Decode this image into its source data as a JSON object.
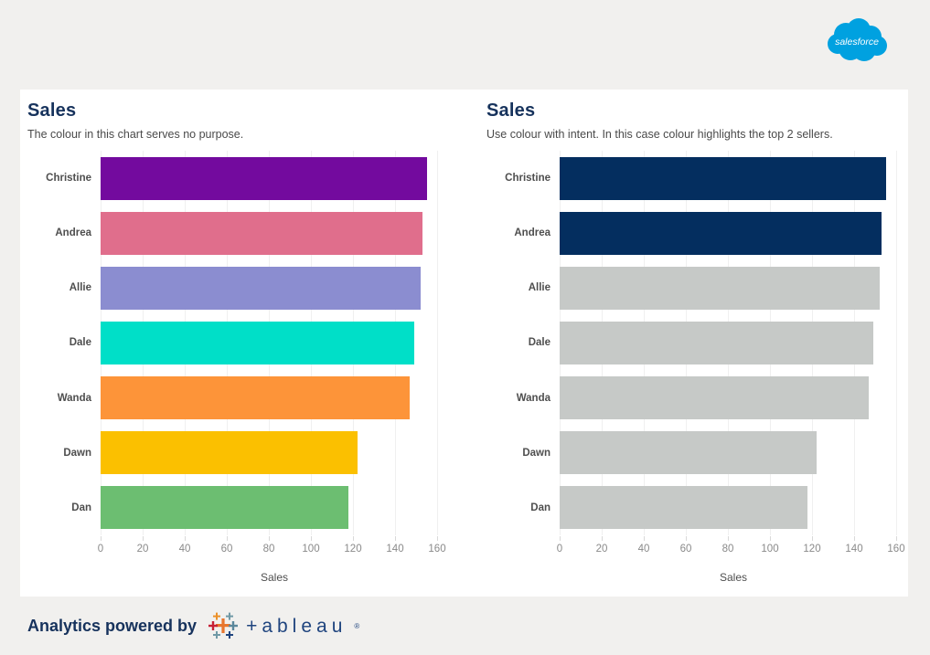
{
  "page": {
    "background": "#F1F0EE",
    "card_background": "#FFFFFF"
  },
  "header": {
    "salesforce_logo_text": "salesforce",
    "salesforce_blue": "#00A1E0"
  },
  "chart_data": [
    {
      "type": "bar",
      "orientation": "horizontal",
      "title": "Sales",
      "subtitle": "The colour in this chart serves no purpose.",
      "categories": [
        "Christine",
        "Andrea",
        "Allie",
        "Dale",
        "Wanda",
        "Dawn",
        "Dan"
      ],
      "values": [
        155,
        153,
        152,
        149,
        147,
        122,
        118
      ],
      "bar_colors": [
        "#730A9E",
        "#E06E8C",
        "#8B8DD0",
        "#00DFC8",
        "#FD9439",
        "#FBC000",
        "#6CBE71"
      ],
      "xlabel": "Sales",
      "xticks": [
        0,
        20,
        40,
        60,
        80,
        100,
        120,
        140,
        160
      ],
      "xlim": [
        0,
        165
      ],
      "grid": true,
      "legend": false
    },
    {
      "type": "bar",
      "orientation": "horizontal",
      "title": "Sales",
      "subtitle": "Use colour with intent. In this case colour highlights the top 2 sellers.",
      "categories": [
        "Christine",
        "Andrea",
        "Allie",
        "Dale",
        "Wanda",
        "Dawn",
        "Dan"
      ],
      "values": [
        155,
        153,
        152,
        149,
        147,
        122,
        118
      ],
      "bar_colors": [
        "#042E5F",
        "#042E5F",
        "#C6C9C7",
        "#C6C9C7",
        "#C6C9C7",
        "#C6C9C7",
        "#C6C9C7"
      ],
      "xlabel": "Sales",
      "xticks": [
        0,
        20,
        40,
        60,
        80,
        100,
        120,
        140,
        160
      ],
      "xlim": [
        0,
        165
      ],
      "grid": true,
      "legend": false
    }
  ],
  "footer": {
    "text": "Analytics powered by",
    "tableau_wordmark": "+ableau",
    "registered_mark": "®"
  }
}
